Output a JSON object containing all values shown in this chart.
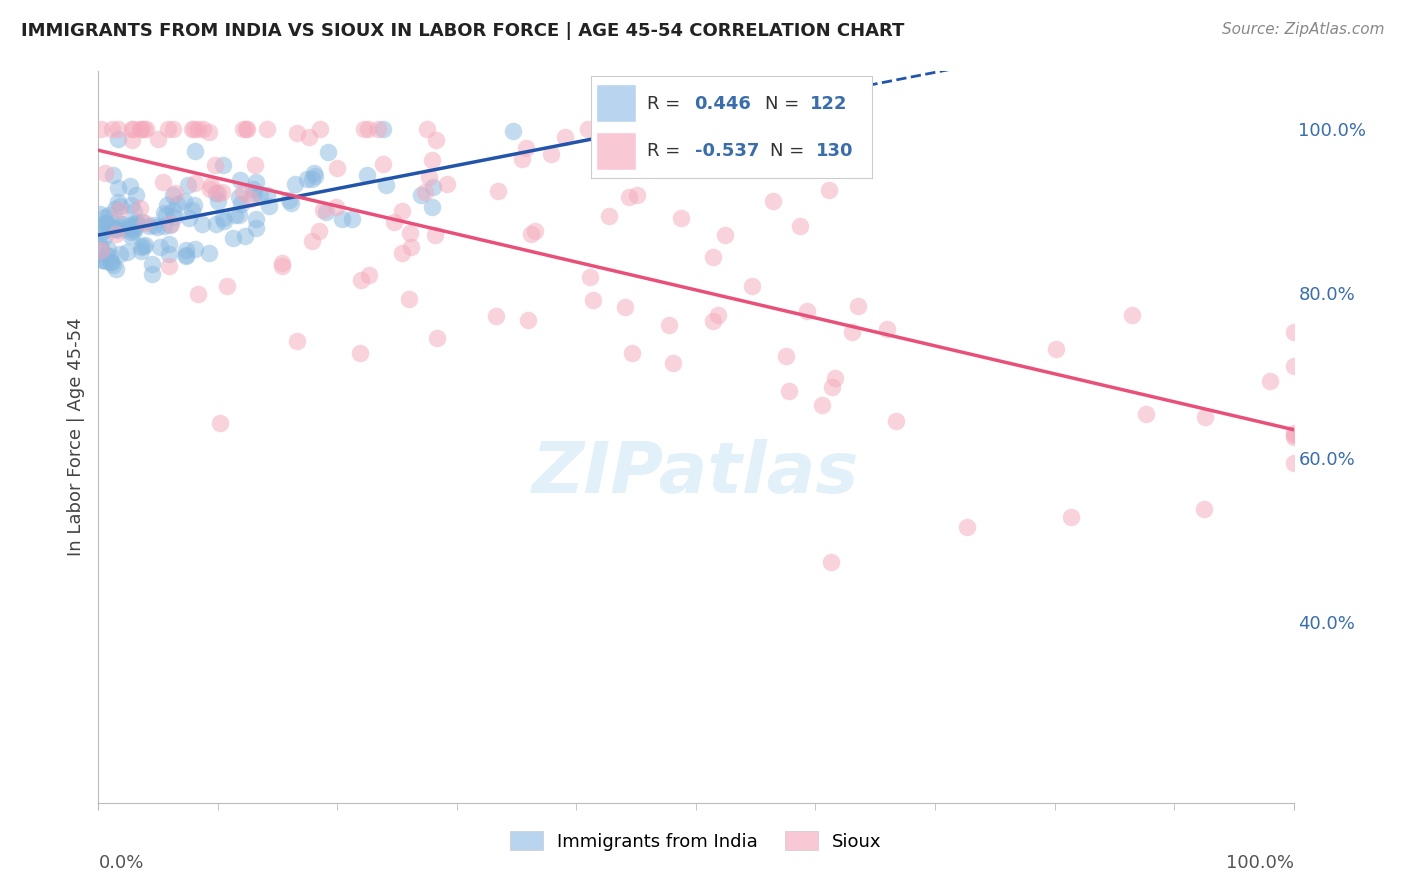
{
  "title": "IMMIGRANTS FROM INDIA VS SIOUX IN LABOR FORCE | AGE 45-54 CORRELATION CHART",
  "source": "Source: ZipAtlas.com",
  "ylabel": "In Labor Force | Age 45-54",
  "yticks": [
    0.4,
    0.6,
    0.8,
    1.0
  ],
  "ytick_labels": [
    "40.0%",
    "60.0%",
    "80.0%",
    "100.0%"
  ],
  "xlim": [
    0.0,
    1.0
  ],
  "ylim": [
    0.18,
    1.07
  ],
  "india_R": 0.446,
  "india_N": 122,
  "sioux_R": -0.537,
  "sioux_N": 130,
  "india_color": "#88b8e0",
  "sioux_color": "#f5a8bb",
  "india_line_color": "#2255aa",
  "sioux_line_color": "#e8507a",
  "grid_color": "#cccccc",
  "grid_style": "--",
  "background_color": "#ffffff",
  "legend_box_color_india": "#b8d4ee",
  "legend_box_color_sioux": "#f8c8d4",
  "watermark_color": "#ddeef8",
  "title_color": "#222222",
  "source_color": "#888888",
  "tick_color": "#3a6eaa",
  "india_seed": 42,
  "sioux_seed": 99
}
